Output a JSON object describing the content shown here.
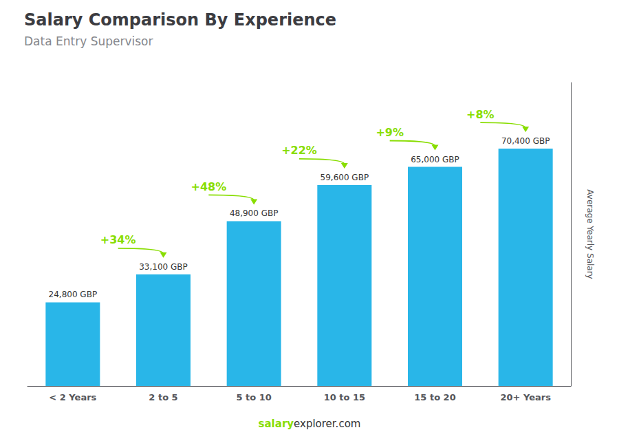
{
  "chart_data": {
    "type": "bar",
    "title": "Salary Comparison By Experience",
    "subtitle": "Data Entry Supervisor",
    "ylabel": "Average Yearly Salary",
    "categories": [
      "< 2 Years",
      "2 to 5",
      "5 to 10",
      "10 to 15",
      "15 to 20",
      "20+ Years"
    ],
    "values": [
      24800,
      33100,
      48900,
      59600,
      65000,
      70400
    ],
    "value_labels": [
      "24,800 GBP",
      "33,100 GBP",
      "48,900 GBP",
      "59,600 GBP",
      "65,000 GBP",
      "70,400 GBP"
    ],
    "data_labels": true,
    "color": "#29b6e8",
    "annotations": [
      {
        "text": "+34%",
        "color": "#88dd00"
      },
      {
        "text": "+48%",
        "color": "#88dd00"
      },
      {
        "text": "+22%",
        "color": "#88dd00"
      },
      {
        "text": "+9%",
        "color": "#88dd00"
      },
      {
        "text": "+8%",
        "color": "#88dd00"
      }
    ],
    "footer": [
      {
        "text": "salary",
        "color": "#88dd00"
      },
      {
        "text": "explorer.com"
      }
    ],
    "ylim": [
      0,
      90000
    ],
    "grid": false,
    "tick_labels": "x"
  }
}
